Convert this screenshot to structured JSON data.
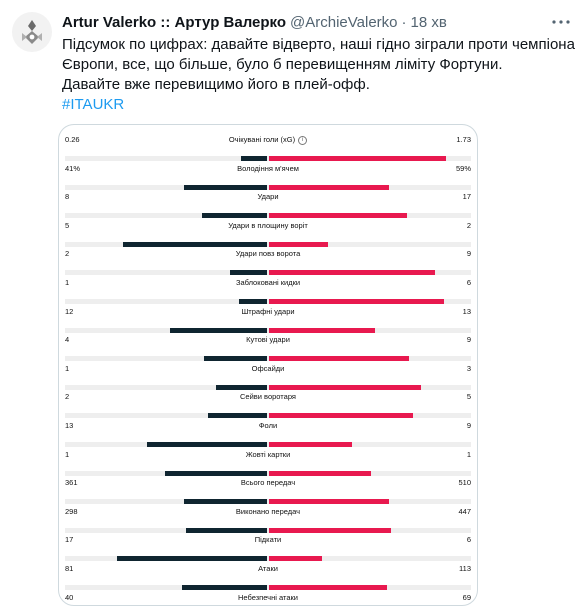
{
  "tweet": {
    "display_name": "Artur Valerko :: Артур Валерко",
    "handle": "@ArchieValerko",
    "separator": "·",
    "time": "18 хв",
    "text_lines": [
      "Підсумок по цифрах: давайте відверто, наші гідно зіграли проти чемпіона",
      "Європи, все, що більше, було б перевищенням ліміту Фортуни.",
      "Давайте вже перевищимо його в плей-офф."
    ],
    "hashtag": "#ITAUKR",
    "more_icon": "more-dots-icon",
    "avatar_icon": "ornament-avatar"
  },
  "colors": {
    "left_team": "#0f2530",
    "right_team": "#e8194f",
    "track": "#eeeeee",
    "link": "#1d9bf0"
  },
  "chart_data": {
    "type": "bar",
    "layout": "diverging-comparison",
    "stats": [
      {
        "label": "Очікувані голи (xG)",
        "left": "0.26",
        "right": "1.73",
        "left_share": 0.13,
        "right_share": 0.87,
        "info_icon": true
      },
      {
        "label": "Володіння м'ячем",
        "left": "41%",
        "right": "59%",
        "left_share": 0.41,
        "right_share": 0.59
      },
      {
        "label": "Удари",
        "left": "8",
        "right": "17",
        "left_share": 0.32,
        "right_share": 0.68
      },
      {
        "label": "Удари в площину воріт",
        "left": "5",
        "right": "2",
        "left_share": 0.71,
        "right_share": 0.29
      },
      {
        "label": "Удари повз ворота",
        "left": "2",
        "right": "9",
        "left_share": 0.18,
        "right_share": 0.82
      },
      {
        "label": "Заблоковані кидки",
        "left": "1",
        "right": "6",
        "left_share": 0.14,
        "right_share": 0.86
      },
      {
        "label": "Штрафні удари",
        "left": "12",
        "right": "13",
        "left_share": 0.48,
        "right_share": 0.52
      },
      {
        "label": "Кутові удари",
        "left": "4",
        "right": "9",
        "left_share": 0.31,
        "right_share": 0.69
      },
      {
        "label": "Офсайди",
        "left": "1",
        "right": "3",
        "left_share": 0.25,
        "right_share": 0.75
      },
      {
        "label": "Сейви воротаря",
        "left": "2",
        "right": "5",
        "left_share": 0.29,
        "right_share": 0.71
      },
      {
        "label": "Фоли",
        "left": "13",
        "right": "9",
        "left_share": 0.59,
        "right_share": 0.41
      },
      {
        "label": "Жовті картки",
        "left": "1",
        "right": "1",
        "left_share": 0.5,
        "right_share": 0.5
      },
      {
        "label": "Всього передач",
        "left": "361",
        "right": "510",
        "left_share": 0.41,
        "right_share": 0.59
      },
      {
        "label": "Виконано передач",
        "left": "298",
        "right": "447",
        "left_share": 0.4,
        "right_share": 0.6
      },
      {
        "label": "Підкати",
        "left": "17",
        "right": "6",
        "left_share": 0.74,
        "right_share": 0.26
      },
      {
        "label": "Атаки",
        "left": "81",
        "right": "113",
        "left_share": 0.42,
        "right_share": 0.58
      },
      {
        "label": "Небезпечні атаки",
        "left": "40",
        "right": "69",
        "left_share": 0.37,
        "right_share": 0.63
      }
    ]
  }
}
